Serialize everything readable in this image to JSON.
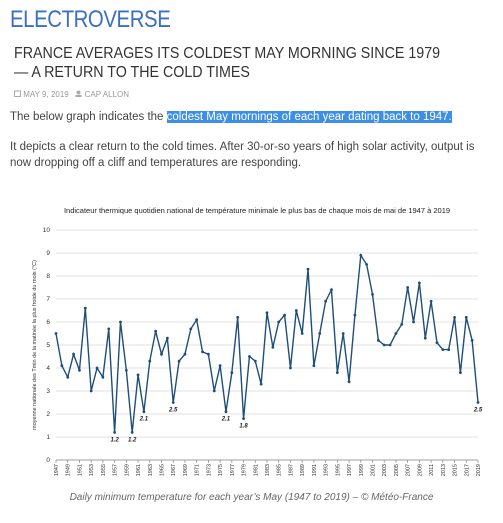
{
  "header": {
    "site": "ELECTROVERSE"
  },
  "article": {
    "title": "FRANCE AVERAGES ITS COLDEST MAY MORNING SINCE 1979 — A RETURN TO THE COLD TIMES",
    "date": "MAY 9, 2019",
    "author": "CAP ALLON",
    "paragraph1": "The below graph indicates the",
    "paragraph1_link": "coldest May mornings of each year dating back to 1947.",
    "paragraph2": "It depicts a clear return to the cold times. After 30-or-so years of high solar activity, output is now dropping off a cliff and temperatures are responding.",
    "caption": "Daily minimum temperature for each year’s May (1947 to 2019) – © Météo-France"
  },
  "chart_data": {
    "type": "line",
    "title": "Indicateur thermique quotidien national de température minimale le plus bas de chaque mois de mai de 1947 à 2019",
    "y_label": "moyenne nationale des Tmin de la matinée la plus froide du mois (°C)",
    "x": [
      1947,
      1948,
      1949,
      1950,
      1951,
      1952,
      1953,
      1954,
      1955,
      1956,
      1957,
      1958,
      1959,
      1960,
      1961,
      1962,
      1963,
      1964,
      1965,
      1966,
      1967,
      1968,
      1969,
      1970,
      1971,
      1972,
      1973,
      1974,
      1975,
      1976,
      1977,
      1978,
      1979,
      1980,
      1981,
      1982,
      1983,
      1984,
      1985,
      1986,
      1987,
      1988,
      1989,
      1990,
      1991,
      1992,
      1993,
      1994,
      1995,
      1996,
      1997,
      1998,
      1999,
      2000,
      2001,
      2002,
      2003,
      2004,
      2005,
      2006,
      2007,
      2008,
      2009,
      2010,
      2011,
      2012,
      2013,
      2014,
      2015,
      2016,
      2017,
      2018,
      2019
    ],
    "values": [
      5.5,
      4.1,
      3.6,
      4.6,
      3.9,
      6.6,
      3.0,
      4.0,
      3.6,
      5.7,
      1.2,
      6.0,
      3.9,
      1.2,
      3.7,
      2.1,
      4.3,
      5.6,
      4.6,
      5.3,
      2.5,
      4.3,
      4.6,
      5.7,
      6.1,
      4.7,
      4.6,
      3.0,
      4.1,
      2.1,
      3.8,
      6.2,
      1.8,
      4.5,
      4.3,
      3.3,
      6.4,
      4.9,
      6.0,
      6.3,
      4.0,
      6.5,
      5.5,
      8.3,
      4.1,
      5.5,
      6.9,
      7.4,
      3.8,
      5.5,
      3.4,
      6.3,
      8.9,
      8.5,
      7.2,
      5.2,
      5.0,
      5.0,
      5.5,
      5.9,
      7.5,
      6.0,
      7.7,
      5.3,
      6.9,
      5.1,
      4.8,
      4.8,
      6.2,
      3.8,
      6.2,
      5.2,
      2.5
    ],
    "value_labels": [
      null,
      null,
      null,
      null,
      null,
      null,
      null,
      null,
      null,
      null,
      "1.2",
      null,
      null,
      "1.2",
      null,
      "2.1",
      null,
      null,
      null,
      null,
      "2.5",
      null,
      null,
      null,
      null,
      null,
      null,
      null,
      null,
      "2.1",
      null,
      null,
      "1.8",
      null,
      null,
      null,
      null,
      null,
      null,
      null,
      null,
      null,
      null,
      null,
      null,
      null,
      null,
      null,
      null,
      null,
      null,
      null,
      null,
      null,
      null,
      null,
      null,
      null,
      null,
      null,
      null,
      null,
      null,
      null,
      null,
      null,
      null,
      null,
      null,
      null,
      null,
      null,
      "2.5"
    ],
    "color": "#1f4e79",
    "xlim": [
      1947,
      2019
    ],
    "xticks": [
      1947,
      1949,
      1951,
      1953,
      1955,
      1957,
      1959,
      1961,
      1963,
      1965,
      1967,
      1969,
      1971,
      1973,
      1975,
      1977,
      1979,
      1981,
      1983,
      1985,
      1987,
      1989,
      1991,
      1993,
      1995,
      1997,
      1999,
      2001,
      2003,
      2005,
      2007,
      2009,
      2011,
      2013,
      2015,
      2017,
      2019
    ],
    "ylim": [
      0,
      10
    ],
    "yticks": [
      0,
      1,
      2,
      3,
      4,
      5,
      6,
      7,
      8,
      9,
      10
    ],
    "grid": true
  }
}
